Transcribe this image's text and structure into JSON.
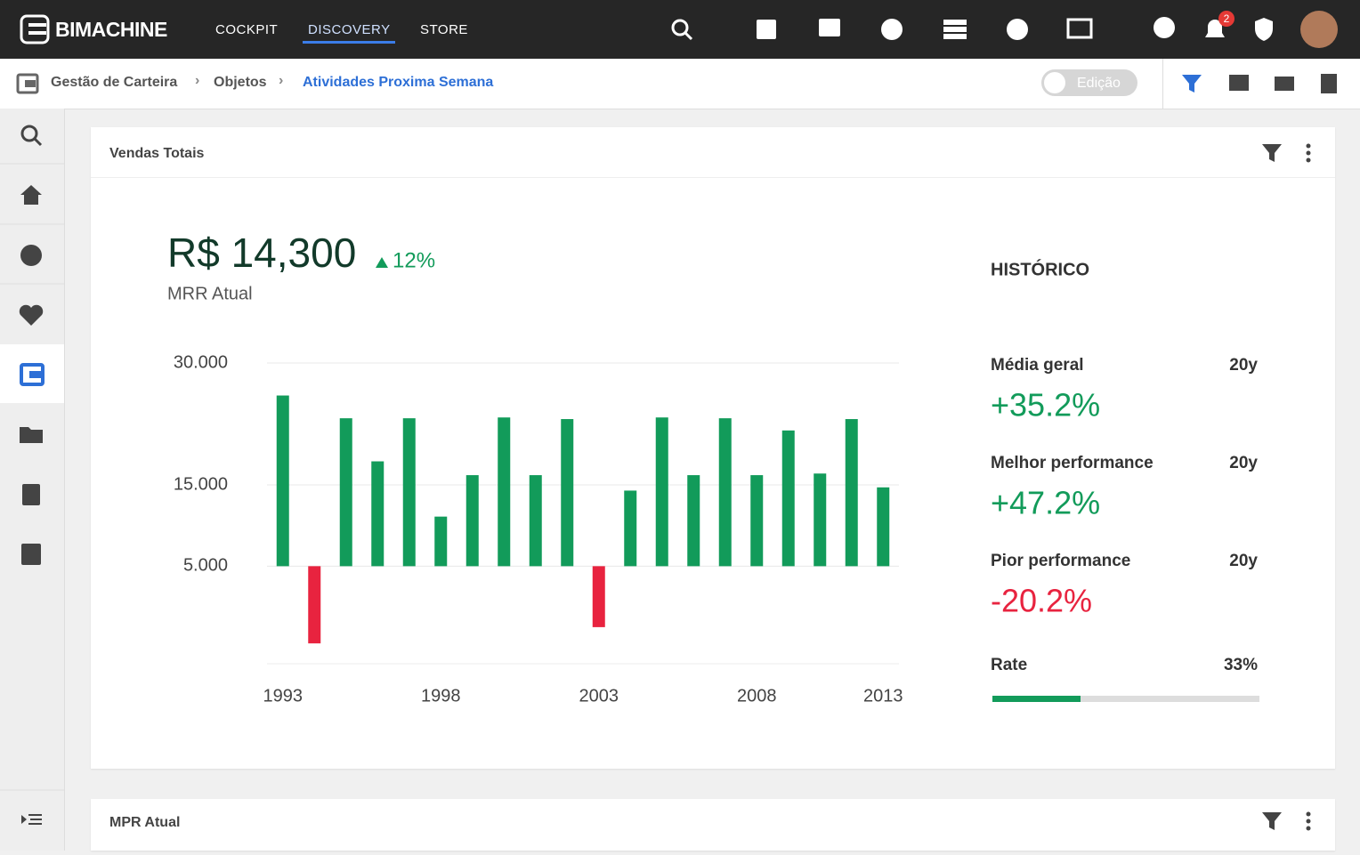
{
  "nav": {
    "brand": "BIMACHINE",
    "menu": [
      "COCKPIT",
      "DISCOVERY",
      "STORE"
    ],
    "notifications": "2"
  },
  "breadcrumb": {
    "items": [
      "Gestão de Carteira",
      "Objetos",
      "Atividades Proxima Semana"
    ],
    "toggle": "Edição"
  },
  "panel": {
    "title": "Vendas Totais"
  },
  "kpi": {
    "value": "R$ 14,300",
    "change": "12%",
    "label": "MRR Atual"
  },
  "chart_data": {
    "type": "bar",
    "categories": [
      "1993",
      null,
      null,
      null,
      null,
      "1998",
      null,
      null,
      null,
      null,
      "2003",
      null,
      null,
      null,
      null,
      "2008",
      null,
      null,
      null,
      "2013"
    ],
    "values": [
      26000,
      -4500,
      23200,
      17900,
      23200,
      11100,
      16200,
      23300,
      16200,
      23100,
      -2500,
      14300,
      23300,
      16200,
      23200,
      16200,
      21700,
      16400,
      23100,
      14700
    ],
    "baseline": 5000,
    "positive_color": "#129b5a",
    "negative_color": "#e8233f",
    "ylim": [
      -7000,
      30000
    ],
    "yticks": [
      {
        "value": 30000,
        "label": "30.000"
      },
      {
        "value": 15000,
        "label": "15.000"
      },
      {
        "value": 5000,
        "label": "5.000"
      }
    ],
    "grid": true
  },
  "history": {
    "title": "HISTÓRICO",
    "rows": [
      {
        "label": "Média geral",
        "period": "20y",
        "value": "+35.2%"
      },
      {
        "label": "Melhor performance",
        "period": "20y",
        "value": "+47.2%"
      },
      {
        "label": "Pior performance",
        "period": "20y",
        "value": "-20.2%"
      }
    ],
    "rate": {
      "label": "Rate",
      "value": 33,
      "value_label": "33%"
    }
  },
  "panel2": {
    "title": "MPR Atual"
  }
}
